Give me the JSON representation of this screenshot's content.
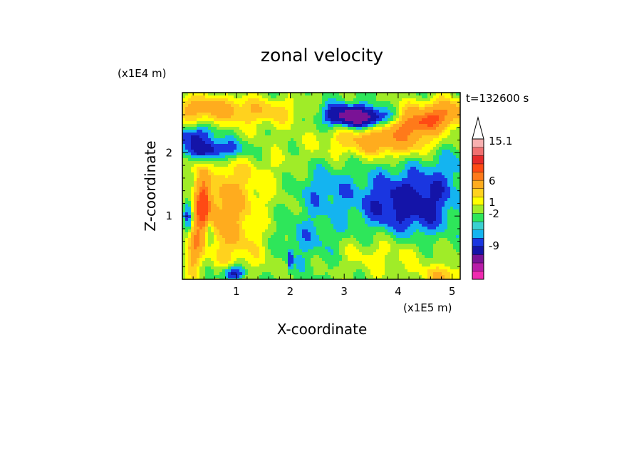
{
  "chart_data": {
    "type": "heatmap",
    "title": "zonal velocity",
    "xlabel": "X-coordinate",
    "ylabel": "Z-coordinate",
    "x_unit": "(x1E5 m)",
    "y_unit": "(x1E4 m)",
    "time_label": "t=132600 s",
    "xlim": [
      0,
      5.15
    ],
    "ylim": [
      0,
      2.95
    ],
    "x_ticks": [
      "1",
      "2",
      "3",
      "4",
      "5"
    ],
    "y_ticks": [
      "1",
      "2"
    ],
    "colorbar": {
      "labels": [
        "15.1",
        "6",
        "1",
        "-2",
        "-9"
      ],
      "level_colors": [
        "#f02ab0",
        "#b81ca8",
        "#7a1296",
        "#1414a8",
        "#1a36e0",
        "#14b4f0",
        "#3ad0d0",
        "#2ee65a",
        "#a0ec28",
        "#ffff00",
        "#ffd21e",
        "#ffac1e",
        "#ff7a1a",
        "#ff4a14",
        "#e62a2a",
        "#f07070",
        "#f8b0b0"
      ],
      "top_triangle_color": "#ffffff"
    },
    "field_colors": {
      "-9": "#7a1296",
      "-5": "#1414a8",
      "-3": "#1a36e0",
      "-2": "#14b4f0",
      "-1": "#2ee65a",
      "0": "#a0ec28",
      "1": "#ffff00",
      "2": "#ffd21e",
      "3": "#ffac1e",
      "5": "#ff7a1a",
      "6": "#ff4a14",
      "9": "#e62a2a"
    },
    "features": [
      {
        "x": 3.45,
        "z": 2.55,
        "amp": -6.5,
        "sx": 0.45,
        "sz": 0.12
      },
      {
        "x": 3.0,
        "z": 2.62,
        "amp": -3.0,
        "sx": 0.35,
        "sz": 0.12
      },
      {
        "x": 0.55,
        "z": 2.05,
        "amp": -4.5,
        "sx": 0.45,
        "sz": 0.12
      },
      {
        "x": 0.2,
        "z": 2.3,
        "amp": -3.0,
        "sx": 0.3,
        "sz": 0.1
      },
      {
        "x": 0.35,
        "z": 2.7,
        "amp": 3.5,
        "sx": 0.5,
        "sz": 0.15
      },
      {
        "x": 1.5,
        "z": 2.65,
        "amp": 2.5,
        "sx": 0.6,
        "sz": 0.15
      },
      {
        "x": 4.4,
        "z": 2.6,
        "amp": 3.2,
        "sx": 0.7,
        "sz": 0.15
      },
      {
        "x": 3.8,
        "z": 2.2,
        "amp": 4.5,
        "sx": 0.7,
        "sz": 0.18
      },
      {
        "x": 4.3,
        "z": 2.45,
        "amp": 3.8,
        "sx": 0.35,
        "sz": 0.12
      },
      {
        "x": 1.2,
        "z": 1.6,
        "amp": 1.2,
        "sx": 0.8,
        "sz": 0.5
      },
      {
        "x": 0.8,
        "z": 1.05,
        "amp": 3.2,
        "sx": 0.35,
        "sz": 0.5
      },
      {
        "x": 0.38,
        "z": 1.2,
        "amp": 5.5,
        "sx": 0.12,
        "sz": 0.35
      },
      {
        "x": 0.2,
        "z": 0.5,
        "amp": 4.0,
        "sx": 0.1,
        "sz": 0.3
      },
      {
        "x": 0.12,
        "z": 0.95,
        "amp": -3.5,
        "sx": 0.06,
        "sz": 0.25
      },
      {
        "x": 0.5,
        "z": 0.8,
        "amp": -3.0,
        "sx": 0.05,
        "sz": 0.2
      },
      {
        "x": 0.55,
        "z": 1.5,
        "amp": -2.0,
        "sx": 0.08,
        "sz": 0.2
      },
      {
        "x": 1.3,
        "z": 0.45,
        "amp": 1.2,
        "sx": 0.5,
        "sz": 0.3
      },
      {
        "x": 0.95,
        "z": 0.1,
        "amp": -4.5,
        "sx": 0.15,
        "sz": 0.08
      },
      {
        "x": 2.3,
        "z": 0.6,
        "amp": -1.8,
        "sx": 0.5,
        "sz": 0.3
      },
      {
        "x": 2.0,
        "z": 0.3,
        "amp": -3.0,
        "sx": 0.03,
        "sz": 0.12
      },
      {
        "x": 3.8,
        "z": 1.2,
        "amp": -2.8,
        "sx": 0.45,
        "sz": 0.35
      },
      {
        "x": 4.5,
        "z": 1.2,
        "amp": -2.8,
        "sx": 0.4,
        "sz": 0.4
      },
      {
        "x": 2.6,
        "z": 1.4,
        "amp": -2.0,
        "sx": 0.4,
        "sz": 0.25
      },
      {
        "x": 3.7,
        "z": 0.4,
        "amp": 1.5,
        "sx": 0.8,
        "sz": 0.25
      },
      {
        "x": 4.85,
        "z": 0.05,
        "amp": 2.8,
        "sx": 0.3,
        "sz": 0.12
      },
      {
        "x": 4.9,
        "z": 2.65,
        "amp": 3.0,
        "sx": 0.25,
        "sz": 0.15
      },
      {
        "x": 5.0,
        "z": 1.9,
        "amp": -1.2,
        "sx": 0.3,
        "sz": 0.4
      }
    ]
  }
}
